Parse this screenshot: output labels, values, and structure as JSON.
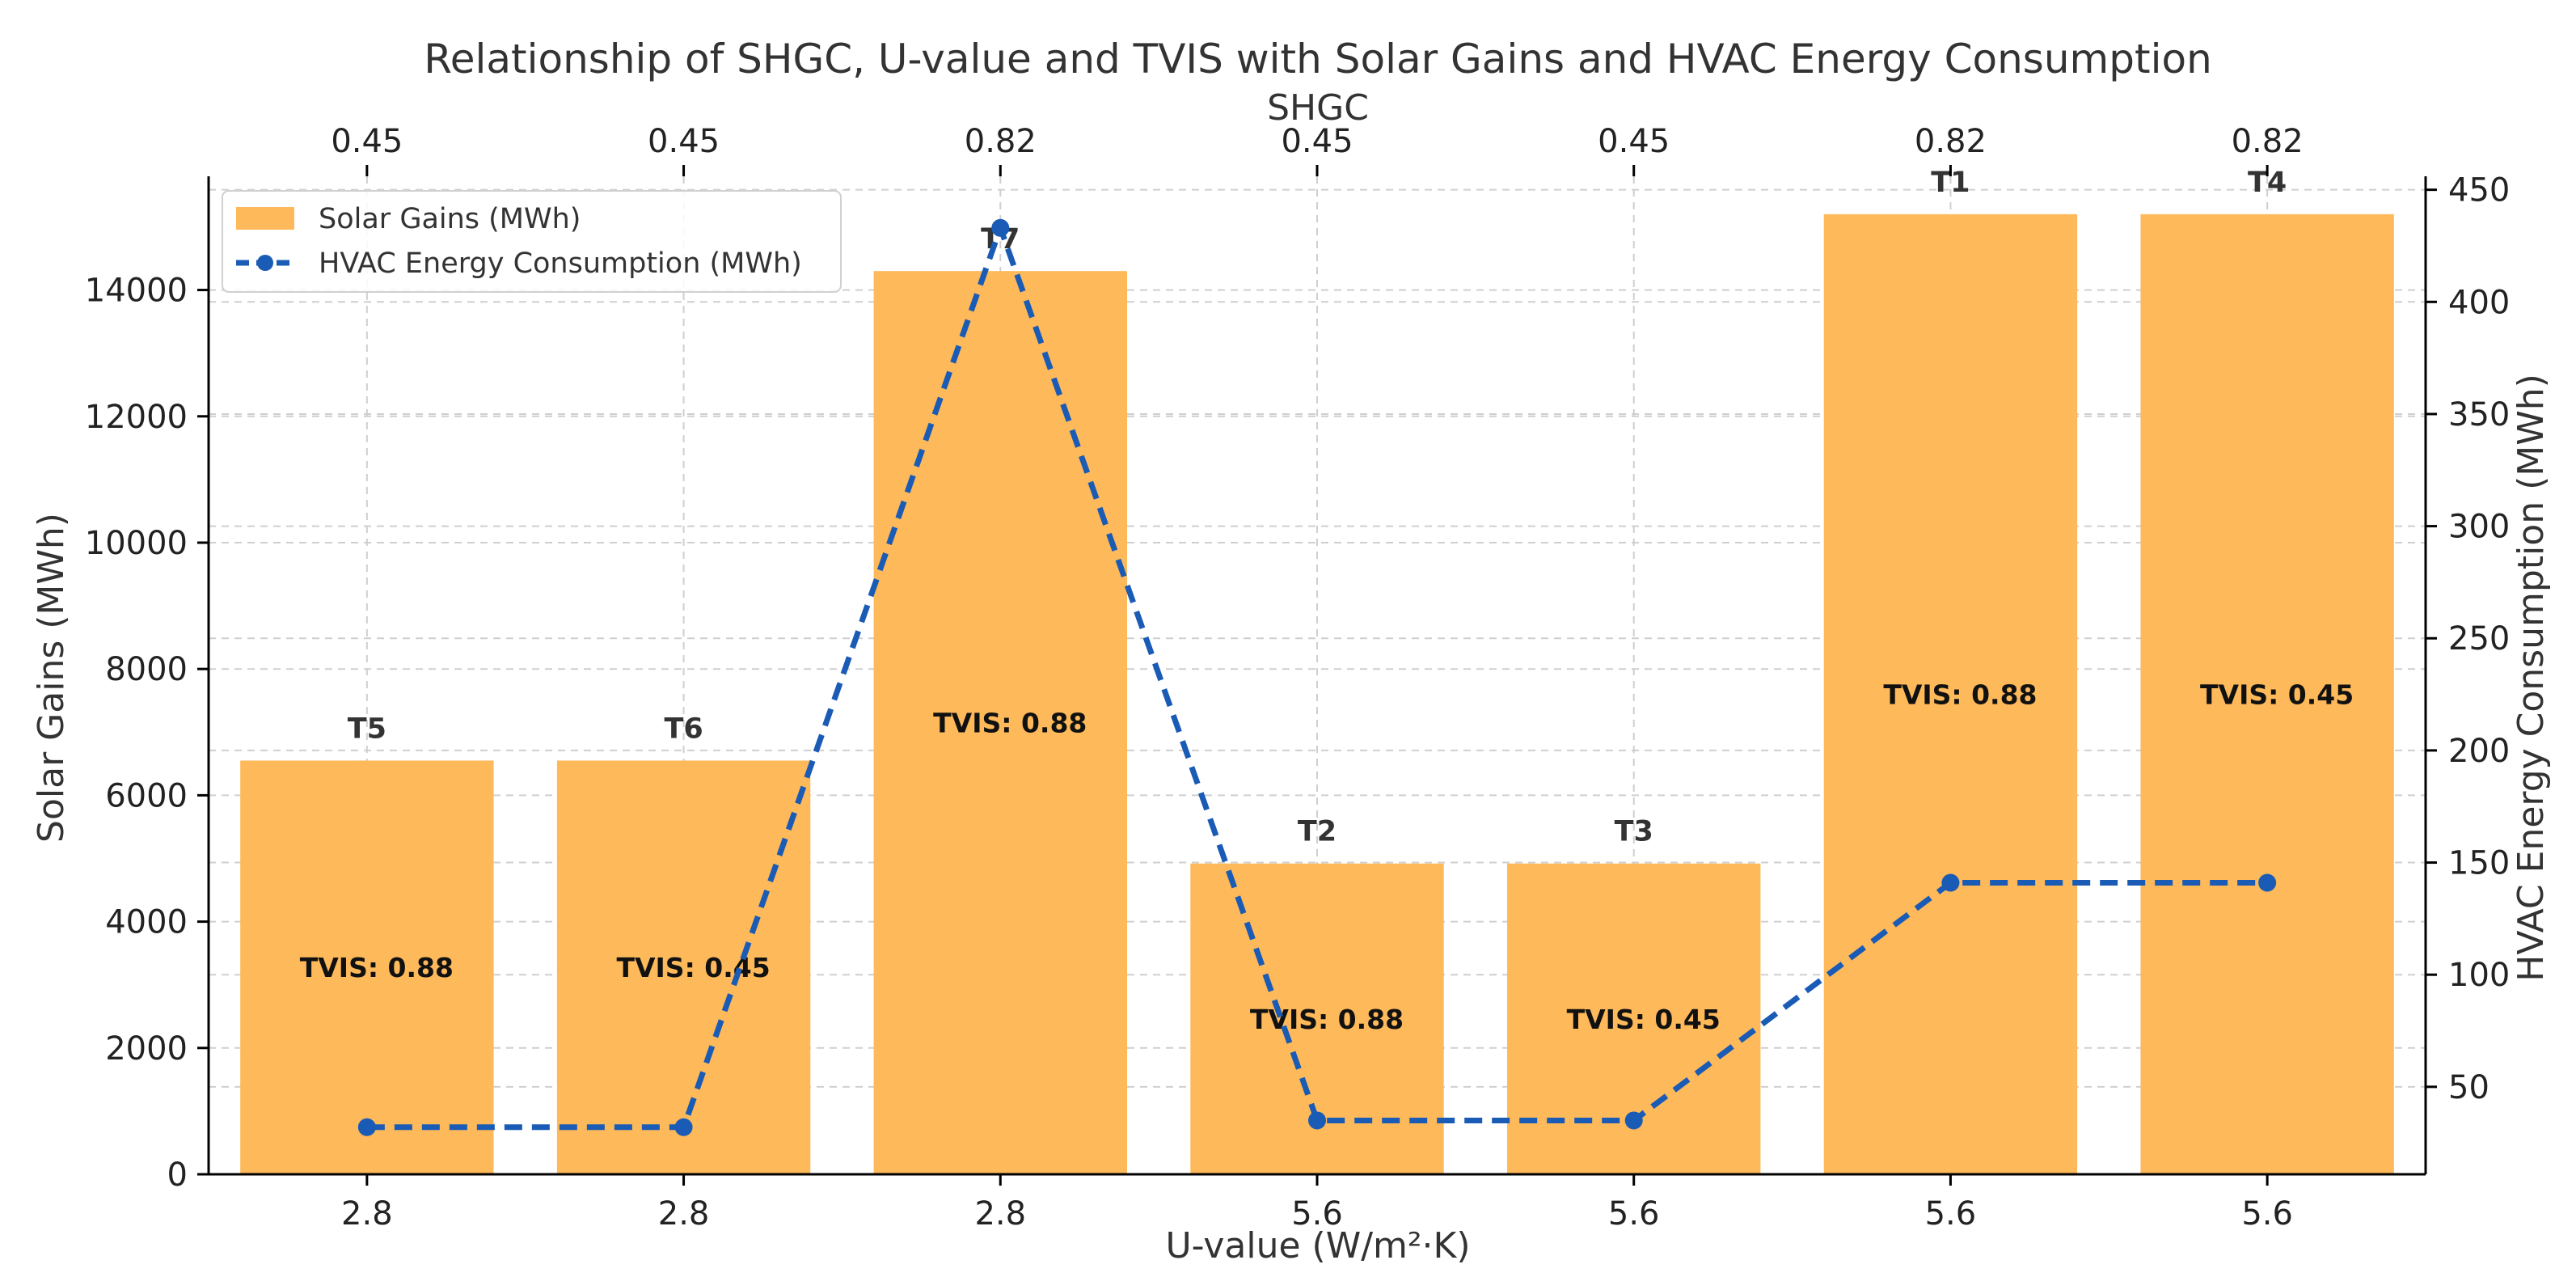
{
  "chart_data": {
    "type": "bar",
    "title": "Relationship of SHGC, U-value and TVIS with Solar Gains and HVAC Energy Consumption",
    "xlabel": "U-value (W/m²·K)",
    "ylabel": "Solar Gains (MWh)",
    "ylabel_right": "HVAC Energy Consumption (MWh)",
    "top_xlabel": "SHGC",
    "categories": [
      "T5",
      "T6",
      "T7",
      "T2",
      "T3",
      "T1",
      "T4"
    ],
    "u_value_ticks": [
      "2.8",
      "2.8",
      "2.8",
      "5.6",
      "5.6",
      "5.6",
      "5.6"
    ],
    "shgc_ticks": [
      "0.45",
      "0.45",
      "0.82",
      "0.45",
      "0.45",
      "0.82",
      "0.82"
    ],
    "tvis_labels": [
      "TVIS: 0.88",
      "TVIS: 0.45",
      "TVIS: 0.88",
      "TVIS: 0.88",
      "TVIS: 0.45",
      "TVIS: 0.88",
      "TVIS: 0.45"
    ],
    "series": [
      {
        "name": "Solar Gains (MWh)",
        "axis": "left",
        "kind": "bar",
        "color": "#FDB95A",
        "values": [
          6550,
          6550,
          14300,
          4920,
          4920,
          15200,
          15200
        ]
      },
      {
        "name": "HVAC Energy Consumption (MWh)",
        "axis": "right",
        "kind": "line",
        "color": "#1A5BB5",
        "values": [
          32,
          32,
          433,
          35,
          35,
          141,
          141
        ]
      }
    ],
    "ylim": [
      0,
      15800
    ],
    "ylim_right": [
      11,
      456
    ],
    "yticks": [
      0,
      2000,
      4000,
      6000,
      8000,
      10000,
      12000,
      14000
    ],
    "yticks_right": [
      50,
      100,
      150,
      200,
      250,
      300,
      350,
      400,
      450
    ],
    "grid": true,
    "legend_position": "upper-left",
    "colors": {
      "bar": "#FDB95A",
      "line": "#1A5BB5",
      "left_label": "#FDB95A",
      "right_label": "#1A5BB5"
    }
  }
}
